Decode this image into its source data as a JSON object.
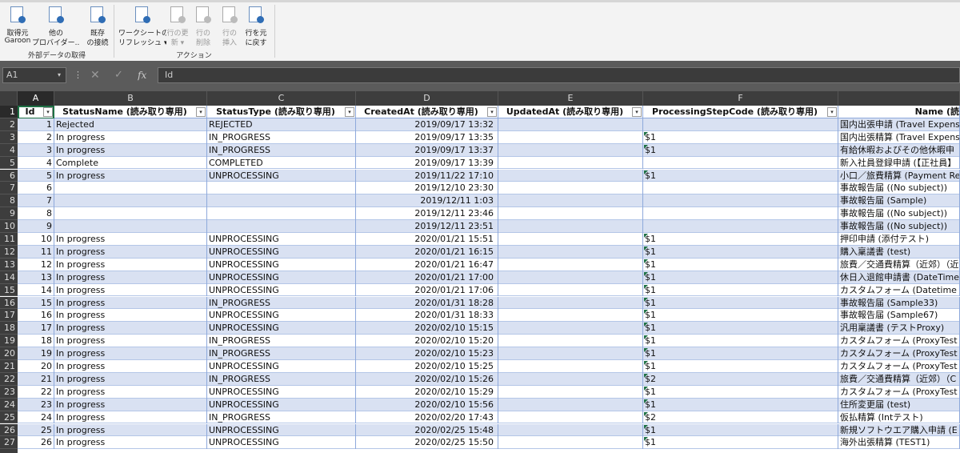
{
  "ribbon": {
    "groups": [
      {
        "label": "外部データの取得",
        "buttons": [
          {
            "lines": [
              "取得元",
              "Garoon"
            ]
          },
          {
            "lines": [
              "他の",
              "プロバイダー..."
            ]
          },
          {
            "lines": [
              "既存",
              "の接続"
            ]
          }
        ]
      },
      {
        "label": "アクション",
        "buttons": [
          {
            "lines": [
              "ワークシートの",
              "リフレッシュ ▾"
            ]
          },
          {
            "lines": [
              "行の更",
              "新 ▾"
            ]
          },
          {
            "lines": [
              "行の",
              "削除"
            ]
          },
          {
            "lines": [
              "行の",
              "挿入"
            ]
          },
          {
            "lines": [
              "行を元",
              "に戻す"
            ]
          }
        ]
      }
    ]
  },
  "name_box": "A1",
  "formula": "Id",
  "sheet": {
    "column_letters": [
      "A",
      "B",
      "C",
      "D",
      "E",
      "F"
    ],
    "row_numbers": [
      1,
      2,
      3,
      4,
      5,
      6,
      7,
      8,
      9,
      10,
      11,
      12,
      13,
      14,
      15,
      16,
      17,
      18,
      19,
      20,
      21,
      22,
      23,
      24,
      25,
      26,
      27
    ],
    "header": [
      "Id",
      "StatusName (読み取り専用)",
      "StatusType (読み取り専用)",
      "CreatedAt (読み取り専用)",
      "UpdatedAt (読み取り専用)",
      "ProcessingStepCode (読み取り専用)",
      "Name (読"
    ],
    "rows": [
      [
        1,
        "Rejected",
        "REJECTED",
        "2019/09/17 13:32",
        null,
        null,
        "国内出張申請 (Travel Expense"
      ],
      [
        2,
        "In progress",
        "IN_PROGRESS",
        "2019/09/17 13:35",
        null,
        "$1",
        "国内出張精算 (Travel Expense"
      ],
      [
        3,
        "In progress",
        "IN_PROGRESS",
        "2019/09/17 13:37",
        null,
        "$1",
        "有給休暇およびその他休暇申"
      ],
      [
        4,
        "Complete",
        "COMPLETED",
        "2019/09/17 13:39",
        null,
        null,
        "新入社員登録申請 (【正社員】"
      ],
      [
        5,
        "In progress",
        "UNPROCESSING",
        "2019/11/22 17:10",
        null,
        "$1",
        "小口／旅費精算 (Payment Re"
      ],
      [
        6,
        null,
        null,
        "2019/12/10 23:30",
        null,
        null,
        "事故報告届 ((No subject))"
      ],
      [
        7,
        null,
        null,
        "2019/12/11 1:03",
        null,
        null,
        "事故報告届 (Sample)"
      ],
      [
        8,
        null,
        null,
        "2019/12/11 23:46",
        null,
        null,
        "事故報告届 ((No subject))"
      ],
      [
        9,
        null,
        null,
        "2019/12/11 23:51",
        null,
        null,
        "事故報告届 ((No subject))"
      ],
      [
        10,
        "In progress",
        "UNPROCESSING",
        "2020/01/21 15:51",
        null,
        "$1",
        "押印申請 (添付テスト)"
      ],
      [
        11,
        "In progress",
        "UNPROCESSING",
        "2020/01/21 16:15",
        null,
        "$1",
        "購入稟議書 (test)"
      ],
      [
        12,
        "In progress",
        "UNPROCESSING",
        "2020/01/21 16:47",
        null,
        "$1",
        "旅費／交通費精算（近郊）（近"
      ],
      [
        13,
        "In progress",
        "UNPROCESSING",
        "2020/01/21 17:00",
        null,
        "$1",
        "休日入退館申請書 (DateTime"
      ],
      [
        14,
        "In progress",
        "UNPROCESSING",
        "2020/01/21 17:06",
        null,
        "$1",
        "カスタムフォーム (Datetime"
      ],
      [
        15,
        "In progress",
        "IN_PROGRESS",
        "2020/01/31 18:28",
        null,
        "$1",
        "事故報告届 (Sample33)"
      ],
      [
        16,
        "In progress",
        "UNPROCESSING",
        "2020/01/31 18:33",
        null,
        "$1",
        "事故報告届 (Sample67)"
      ],
      [
        17,
        "In progress",
        "UNPROCESSING",
        "2020/02/10 15:15",
        null,
        "$1",
        "汎用稟議書 (テストProxy)"
      ],
      [
        18,
        "In progress",
        "IN_PROGRESS",
        "2020/02/10 15:20",
        null,
        "$1",
        "カスタムフォーム (ProxyTest"
      ],
      [
        19,
        "In progress",
        "IN_PROGRESS",
        "2020/02/10 15:23",
        null,
        "$1",
        "カスタムフォーム (ProxyTest"
      ],
      [
        20,
        "In progress",
        "UNPROCESSING",
        "2020/02/10 15:25",
        null,
        "$1",
        "カスタムフォーム (ProxyTest"
      ],
      [
        21,
        "In progress",
        "IN_PROGRESS",
        "2020/02/10 15:26",
        null,
        "$2",
        "旅費／交通費精算（近郊）（C"
      ],
      [
        22,
        "In progress",
        "UNPROCESSING",
        "2020/02/10 15:29",
        null,
        "$1",
        "カスタムフォーム (ProxyTest"
      ],
      [
        23,
        "In progress",
        "UNPROCESSING",
        "2020/02/10 15:56",
        null,
        "$1",
        "住所変更届 (test)"
      ],
      [
        24,
        "In progress",
        "IN_PROGRESS",
        "2020/02/20 17:43",
        null,
        "$2",
        "仮払精算 (Intテスト)"
      ],
      [
        25,
        "In progress",
        "UNPROCESSING",
        "2020/02/25 15:48",
        null,
        "$1",
        "新規ソフトウエア購入申請 (E"
      ],
      [
        26,
        "In progress",
        "UNPROCESSING",
        "2020/02/25 15:50",
        null,
        "$1",
        "海外出張精算 (TEST1)"
      ]
    ]
  }
}
